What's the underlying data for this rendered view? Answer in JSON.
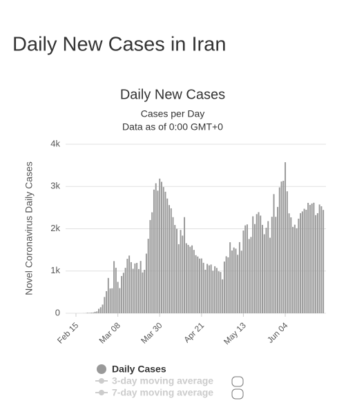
{
  "page_title": "Daily New Cases in Iran",
  "chart_data": {
    "type": "bar",
    "title": "Daily New Cases",
    "subtitle": [
      "Cases per Day",
      "Data as of 0:00 GMT+0"
    ],
    "y_label": "Novel Coronavirus Daily Cases",
    "categories": [
      "Feb 15",
      null,
      null,
      null,
      null,
      null,
      null,
      null,
      null,
      null,
      null,
      null,
      null,
      null,
      null,
      null,
      null,
      null,
      null,
      null,
      null,
      null,
      "Mar 08",
      null,
      null,
      null,
      null,
      null,
      null,
      null,
      null,
      null,
      null,
      null,
      null,
      null,
      null,
      null,
      null,
      null,
      null,
      null,
      null,
      null,
      "Mar 30",
      null,
      null,
      null,
      null,
      null,
      null,
      null,
      null,
      null,
      null,
      null,
      null,
      null,
      null,
      null,
      null,
      null,
      null,
      null,
      null,
      null,
      "Apr 21",
      null,
      null,
      null,
      null,
      null,
      null,
      null,
      null,
      null,
      null,
      null,
      null,
      null,
      null,
      null,
      null,
      null,
      null,
      null,
      null,
      null,
      "May 13",
      null,
      null,
      null,
      null,
      null,
      null,
      null,
      null,
      null,
      null,
      null,
      null,
      null,
      null,
      null,
      null,
      null,
      null,
      null,
      null,
      null,
      "Jun 04",
      null,
      null,
      null,
      null,
      null,
      null,
      null,
      null,
      null,
      null,
      null,
      null,
      null,
      null,
      null,
      null,
      null,
      null,
      null,
      null
    ],
    "series": [
      {
        "name": "Daily Cases",
        "color": "#999999",
        "values": [
          0,
          0,
          0,
          0,
          2,
          3,
          13,
          10,
          15,
          18,
          34,
          44,
          106,
          143,
          205,
          385,
          523,
          835,
          586,
          591,
          1234,
          1076,
          743,
          595,
          881,
          958,
          1075,
          1289,
          1365,
          1209,
          1053,
          1178,
          1192,
          1046,
          1237,
          966,
          1028,
          1411,
          1762,
          2206,
          2389,
          2926,
          3076,
          2901,
          3186,
          3110,
          2987,
          2875,
          2715,
          2560,
          2483,
          2274,
          2089,
          1997,
          1634,
          1972,
          1837,
          2274,
          1657,
          1617,
          1574,
          1606,
          1499,
          1374,
          1343,
          1294,
          1297,
          1194,
          1030,
          1168,
          1134,
          1153,
          1006,
          1112,
          1073,
          993,
          976,
          802,
          1223,
          1349,
          1323,
          1680,
          1485,
          1556,
          1529,
          1383,
          1683,
          1481,
          1958,
          2080,
          2102,
          1757,
          1806,
          2294,
          2111,
          2346,
          2392,
          2311,
          2091,
          1869,
          2023,
          2180,
          1787,
          2283,
          2819,
          2282,
          2516,
          2979,
          3117,
          3134,
          3574,
          2886,
          2364,
          2269,
          2043,
          2095,
          2011,
          2238,
          2369,
          2410,
          2472,
          2449,
          2612,
          2563,
          2596,
          2615,
          2322,
          2368,
          2573,
          2531,
          2445
        ]
      }
    ],
    "inactive_legend": [
      "3-day moving average",
      "7-day moving average"
    ],
    "ylim": [
      0,
      4000
    ],
    "yticks": [
      0,
      {
        "value": 1000,
        "label": "1k"
      },
      {
        "value": 2000,
        "label": "2k"
      },
      {
        "value": 3000,
        "label": "3k"
      },
      {
        "value": 4000,
        "label": "4k"
      }
    ],
    "grid": true
  }
}
